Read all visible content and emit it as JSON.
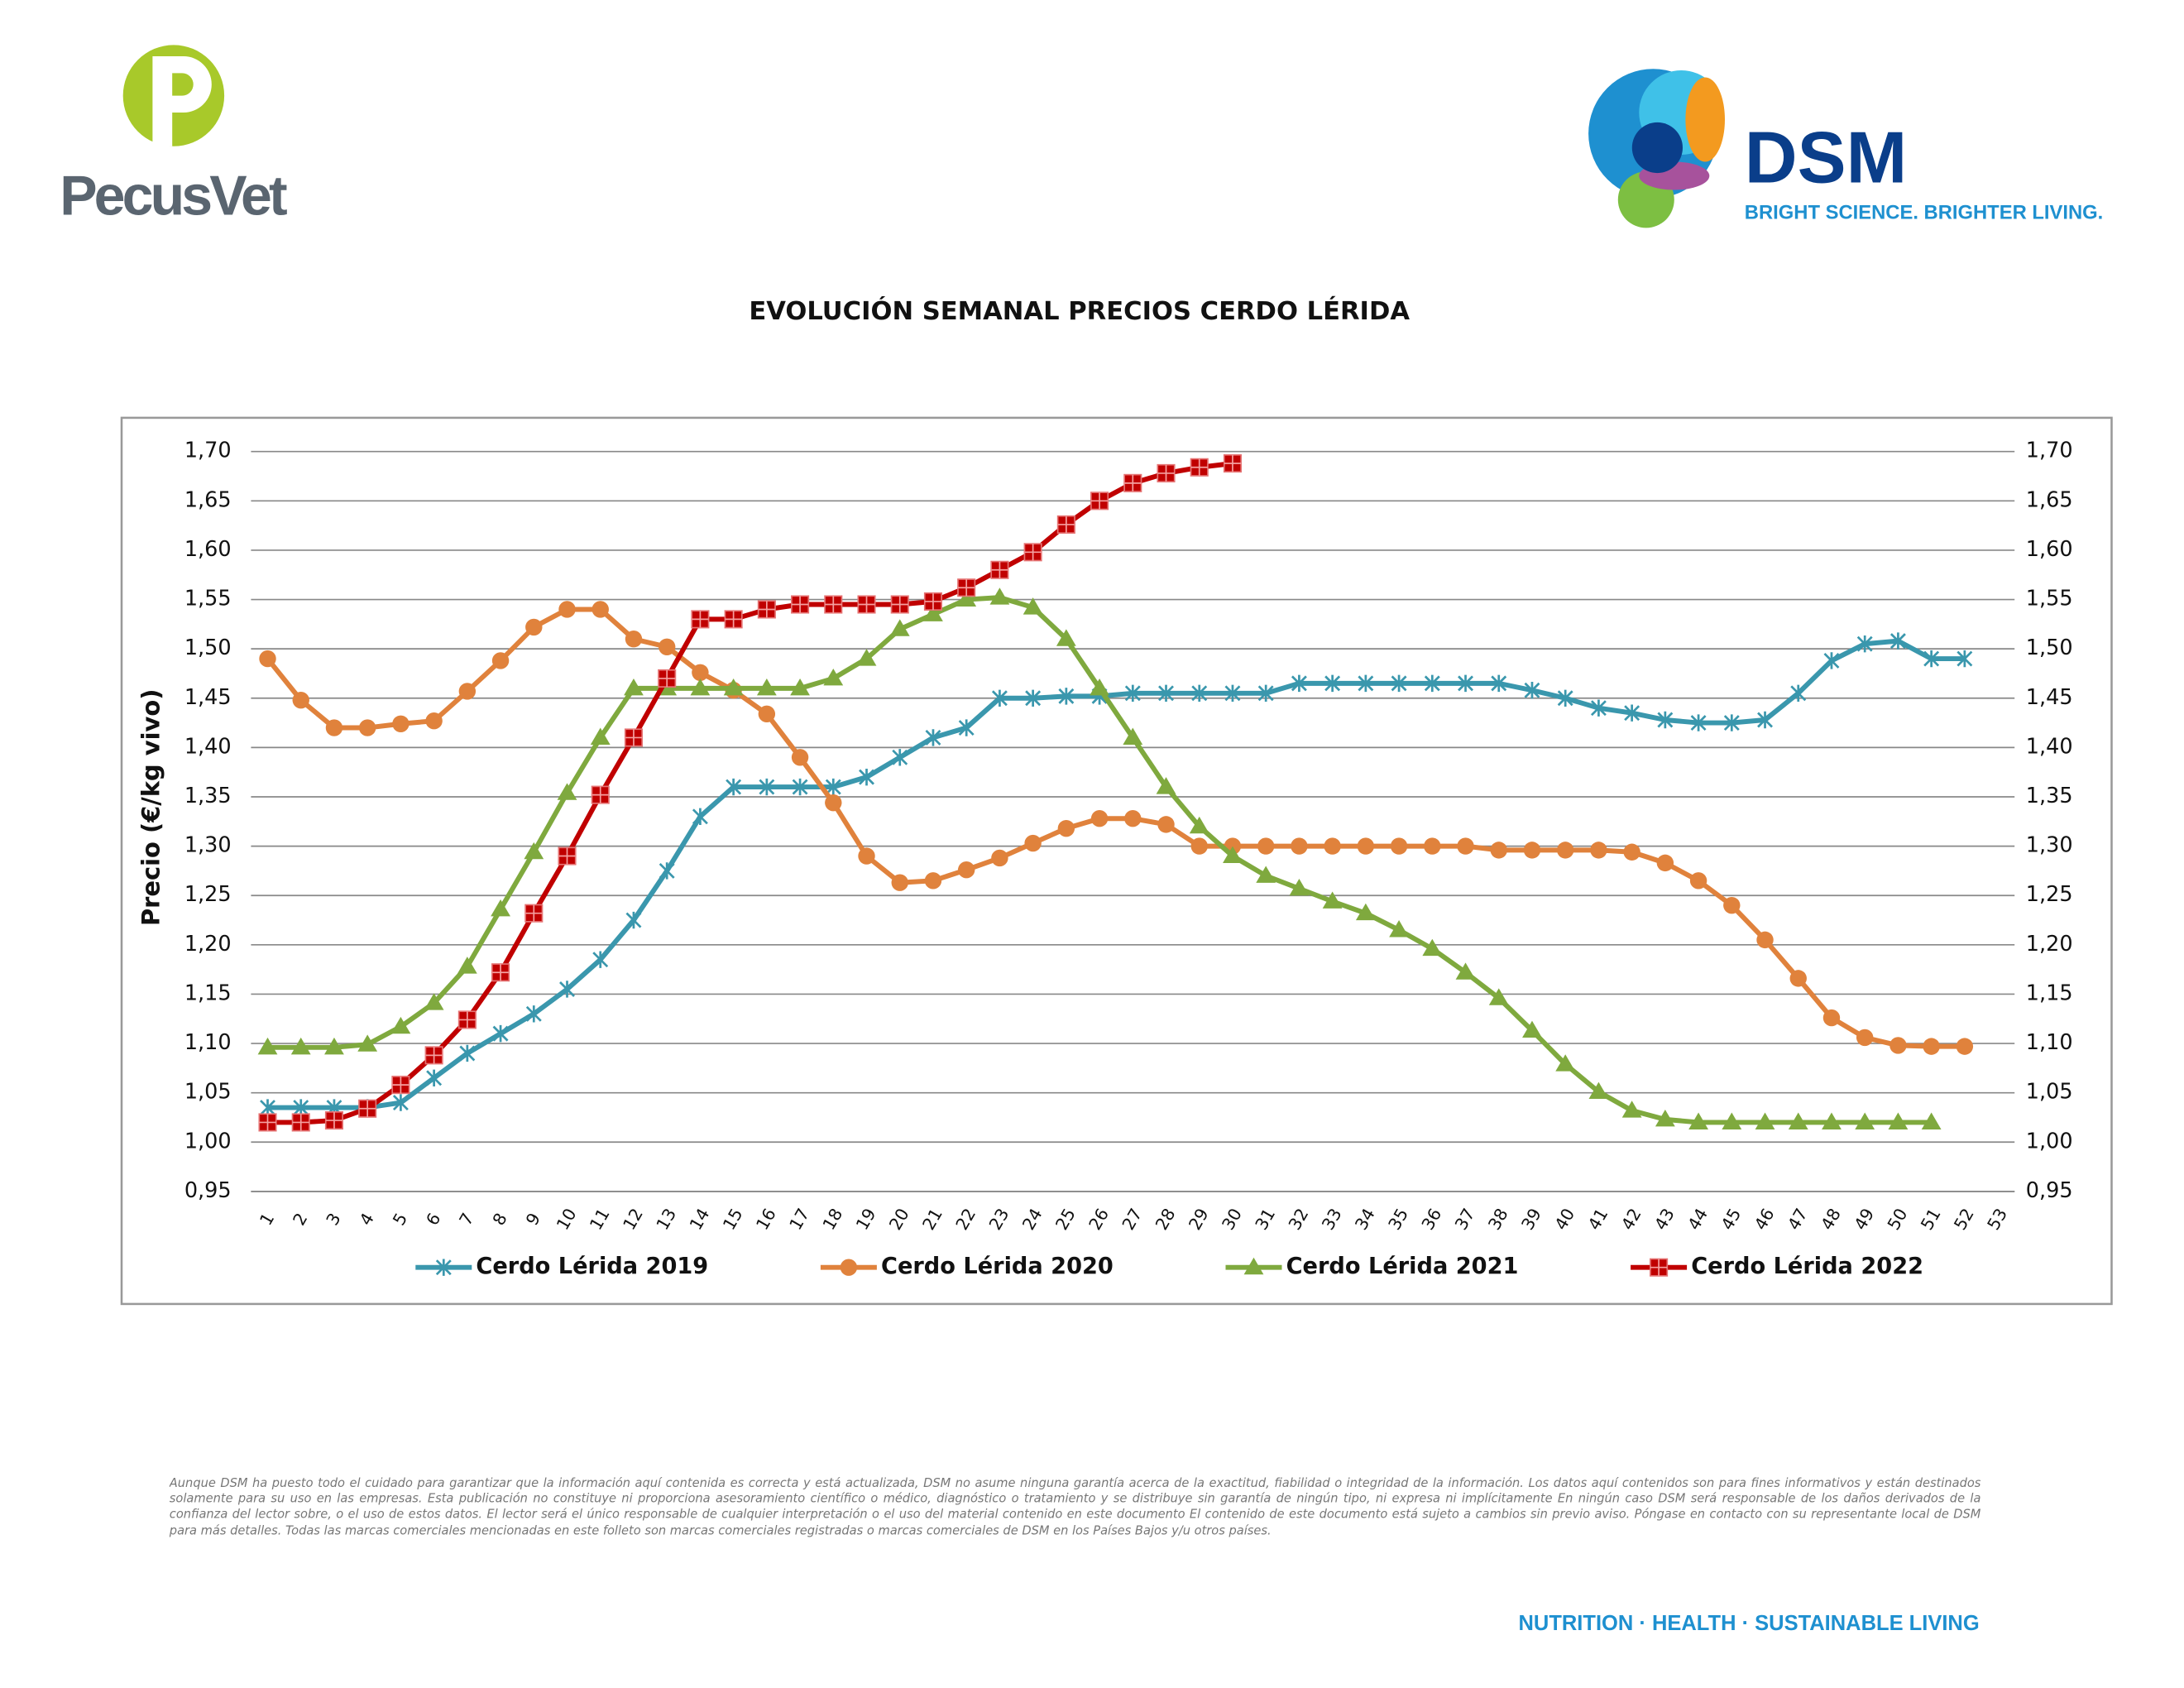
{
  "header": {
    "left_logo": "PecusVet",
    "right_logo": "DSM",
    "tagline": "BRIGHT SCIENCE. BRIGHTER LIVING."
  },
  "chart_data": {
    "type": "line",
    "title": "EVOLUCIÓN SEMANAL PRECIOS CERDO LÉRIDA",
    "y_label": "Precio (€/kg vivo)",
    "categories": [
      1,
      2,
      3,
      4,
      5,
      6,
      7,
      8,
      9,
      10,
      11,
      12,
      13,
      14,
      15,
      16,
      17,
      18,
      19,
      20,
      21,
      22,
      23,
      24,
      25,
      26,
      27,
      28,
      29,
      30,
      31,
      32,
      33,
      34,
      35,
      36,
      37,
      38,
      39,
      40,
      41,
      42,
      43,
      44,
      45,
      46,
      47,
      48,
      49,
      50,
      51,
      52,
      53
    ],
    "ylim": [
      0.95,
      1.7
    ],
    "yticks": [
      {
        "value": 0.95,
        "label": "0,95"
      },
      {
        "value": 1.0,
        "label": "1,00"
      },
      {
        "value": 1.05,
        "label": "1,05"
      },
      {
        "value": 1.1,
        "label": "1,10"
      },
      {
        "value": 1.15,
        "label": "1,15"
      },
      {
        "value": 1.2,
        "label": "1,20"
      },
      {
        "value": 1.25,
        "label": "1,25"
      },
      {
        "value": 1.3,
        "label": "1,30"
      },
      {
        "value": 1.35,
        "label": "1,35"
      },
      {
        "value": 1.4,
        "label": "1,40"
      },
      {
        "value": 1.45,
        "label": "1,45"
      },
      {
        "value": 1.5,
        "label": "1,50"
      },
      {
        "value": 1.55,
        "label": "1,55"
      },
      {
        "value": 1.6,
        "label": "1,60"
      },
      {
        "value": 1.65,
        "label": "1,65"
      },
      {
        "value": 1.7,
        "label": "1,70"
      }
    ],
    "grid": true,
    "legend": "bottom",
    "series": [
      {
        "name": "Cerdo Lérida 2019",
        "color": "#3a97ad",
        "marker": "x",
        "values": [
          1.035,
          1.035,
          1.035,
          1.035,
          1.04,
          1.065,
          1.09,
          1.11,
          1.13,
          1.155,
          1.185,
          1.225,
          1.275,
          1.33,
          1.36,
          1.36,
          1.36,
          1.36,
          1.37,
          1.39,
          1.41,
          1.42,
          1.45,
          1.45,
          1.452,
          1.452,
          1.455,
          1.455,
          1.455,
          1.455,
          1.455,
          1.465,
          1.465,
          1.465,
          1.465,
          1.465,
          1.465,
          1.465,
          1.458,
          1.45,
          1.44,
          1.435,
          1.428,
          1.425,
          1.425,
          1.428,
          1.455,
          1.488,
          1.505,
          1.508,
          1.49,
          1.49,
          null
        ]
      },
      {
        "name": "Cerdo Lérida 2020",
        "color": "#e0823c",
        "marker": "circle",
        "values": [
          1.49,
          1.448,
          1.42,
          1.42,
          1.424,
          1.427,
          1.457,
          1.488,
          1.522,
          1.54,
          1.54,
          1.51,
          1.502,
          1.476,
          1.458,
          1.434,
          1.39,
          1.344,
          1.29,
          1.263,
          1.265,
          1.276,
          1.288,
          1.303,
          1.318,
          1.328,
          1.328,
          1.322,
          1.3,
          1.3,
          1.3,
          1.3,
          1.3,
          1.3,
          1.3,
          1.3,
          1.3,
          1.296,
          1.296,
          1.296,
          1.296,
          1.294,
          1.283,
          1.265,
          1.24,
          1.205,
          1.166,
          1.126,
          1.106,
          1.098,
          1.097,
          1.097,
          null
        ]
      },
      {
        "name": "Cerdo Lérida 2021",
        "color": "#7fa93e",
        "marker": "triangle",
        "values": [
          1.096,
          1.096,
          1.096,
          1.099,
          1.117,
          1.141,
          1.178,
          1.236,
          1.294,
          1.354,
          1.41,
          1.46,
          1.46,
          1.46,
          1.46,
          1.46,
          1.46,
          1.47,
          1.49,
          1.52,
          1.535,
          1.55,
          1.552,
          1.542,
          1.51,
          1.46,
          1.41,
          1.36,
          1.32,
          1.29,
          1.27,
          1.257,
          1.244,
          1.232,
          1.215,
          1.196,
          1.172,
          1.146,
          1.113,
          1.079,
          1.051,
          1.032,
          1.023,
          1.02,
          1.02,
          1.02,
          1.02,
          1.02,
          1.02,
          1.02,
          1.02,
          null,
          null
        ]
      },
      {
        "name": "Cerdo Lérida 2022",
        "color": "#c00000",
        "marker": "square",
        "values": [
          1.02,
          1.02,
          1.022,
          1.034,
          1.058,
          1.088,
          1.124,
          1.172,
          1.232,
          1.29,
          1.352,
          1.41,
          1.47,
          1.53,
          1.53,
          1.54,
          1.545,
          1.545,
          1.545,
          1.545,
          1.548,
          1.562,
          1.58,
          1.598,
          1.626,
          1.65,
          1.668,
          1.678,
          1.684,
          1.688,
          null,
          null,
          null,
          null,
          null,
          null,
          null,
          null,
          null,
          null,
          null,
          null,
          null,
          null,
          null,
          null,
          null,
          null,
          null,
          null,
          null,
          null,
          null
        ]
      }
    ]
  },
  "disclaimer": "Aunque DSM ha puesto todo el cuidado para garantizar que la información aquí contenida es correcta y está actualizada, DSM no asume ninguna garantía acerca de la exactitud, fiabilidad o integridad de la información. Los datos aquí contenidos son para fines informativos y están destinados solamente para su uso en las empresas. Esta publicación no constituye ni proporciona asesoramiento científico o médico, diagnóstico o tratamiento y se distribuye sin garantía de ningún tipo, ni expresa ni implícitamente En ningún caso DSM será responsable de los daños derivados de la confianza del lector sobre, o el uso de estos datos. El lector será el único responsable de cualquier interpretación o el uso del material contenido en este documento El contenido de este documento está sujeto a cambios sin previo aviso. Póngase en contacto con su representante local de DSM para más detalles. Todas las marcas comerciales mencionadas en este folleto son marcas comerciales registradas o marcas comerciales de DSM en los Países Bajos y/u otros países.",
  "footer": "NUTRITION · HEALTH · SUSTAINABLE LIVING"
}
